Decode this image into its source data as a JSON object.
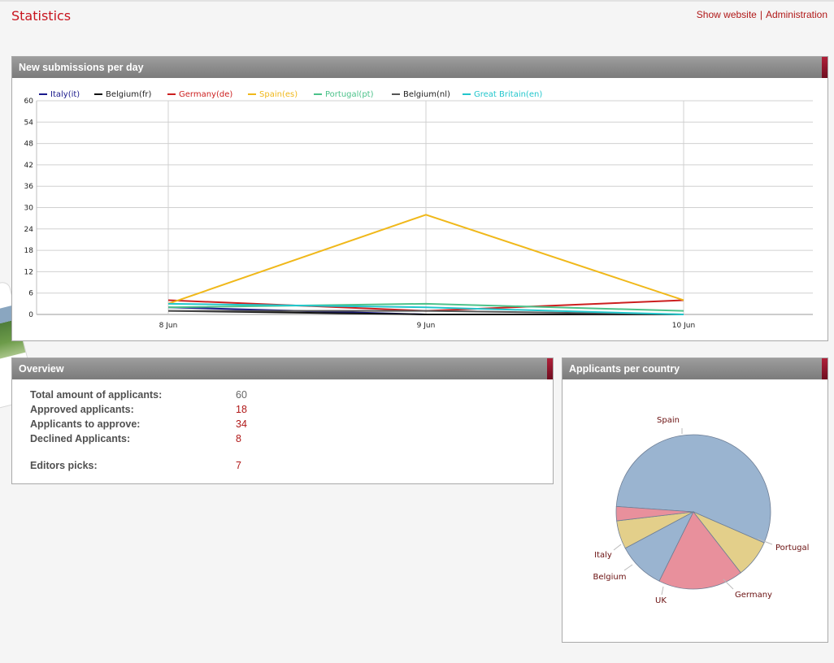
{
  "header": {
    "title": "Statistics",
    "links": [
      {
        "label": "Show website"
      },
      {
        "label": "Administration"
      }
    ],
    "separator": "|"
  },
  "panels": {
    "line": {
      "title": "New submissions per day"
    },
    "overview": {
      "title": "Overview"
    },
    "pie": {
      "title": "Applicants per country"
    }
  },
  "overview": {
    "rows": [
      {
        "label": "Total amount of applicants:",
        "value": "60"
      },
      {
        "label": "Approved applicants:",
        "value": "18"
      },
      {
        "label": "Applicants to approve:",
        "value": "34"
      },
      {
        "label": "Declined Applicants:",
        "value": "8"
      },
      {
        "label": "Editors picks:",
        "value": "7"
      }
    ]
  },
  "colors": {
    "accent": "#c8141e",
    "panel_header": "#8a8a8a"
  },
  "chart_data": [
    {
      "type": "line",
      "title": "",
      "xlabel": "",
      "ylabel": "",
      "categories": [
        "8 Jun",
        "9 Jun",
        "10 Jun"
      ],
      "ylim": [
        0,
        60
      ],
      "yticks": [
        0,
        6,
        12,
        18,
        24,
        30,
        36,
        42,
        48,
        54,
        60
      ],
      "grid": true,
      "legend": "top",
      "series": [
        {
          "name": "Italy(it)",
          "color": "#1a1a8c",
          "values": [
            2,
            0,
            0
          ]
        },
        {
          "name": "Belgium(fr)",
          "color": "#111111",
          "values": [
            1,
            0,
            0
          ]
        },
        {
          "name": "Germany(de)",
          "color": "#cc1f1f",
          "values": [
            4,
            1,
            4
          ]
        },
        {
          "name": "Spain(es)",
          "color": "#f0b81a",
          "values": [
            3,
            28,
            4
          ]
        },
        {
          "name": "Portugal(pt)",
          "color": "#4cc28a",
          "values": [
            2,
            3,
            1
          ]
        },
        {
          "name": "Belgium(nl)",
          "color": "#555555",
          "values": [
            1,
            1,
            0
          ]
        },
        {
          "name": "Great Britain(en)",
          "color": "#22c6cc",
          "values": [
            3,
            2,
            0
          ]
        }
      ]
    },
    {
      "type": "pie",
      "title": "",
      "slices": [
        {
          "label": "Spain",
          "value": 28,
          "color": "#9ab4d0"
        },
        {
          "label": "Portugal",
          "value": 4,
          "color": "#e3cf8a"
        },
        {
          "label": "Germany",
          "value": 9,
          "color": "#e8909c"
        },
        {
          "label": "UK",
          "value": 5,
          "color": "#9ab4d0"
        },
        {
          "label": "Belgium",
          "value": 3,
          "color": "#e3cf8a"
        },
        {
          "label": "Italy",
          "value": 1.5,
          "color": "#e8909c"
        }
      ]
    }
  ]
}
